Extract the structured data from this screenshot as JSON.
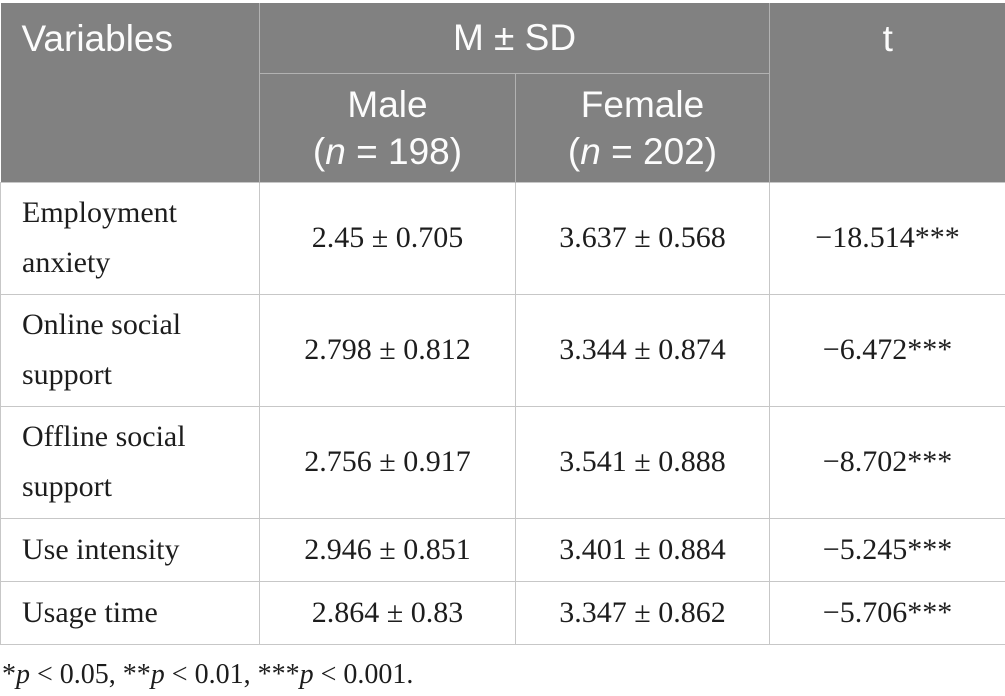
{
  "colors": {
    "header_background": "#818181",
    "header_text": "#fcfcfc",
    "body_text": "#1d1d1d",
    "grid_line": "#c7c7c7"
  },
  "table": {
    "header": {
      "variables_label": "Variables",
      "msd_label": "M ± SD",
      "t_label": "t",
      "male": {
        "group": "Male",
        "n_parts": [
          {
            "text": "("
          },
          {
            "text": "n",
            "italic": true
          },
          {
            "text": " = 198)"
          }
        ]
      },
      "female": {
        "group": "Female",
        "n_parts": [
          {
            "text": "("
          },
          {
            "text": "n",
            "italic": true
          },
          {
            "text": " = 202)"
          }
        ]
      }
    },
    "rows": [
      {
        "variable": "Employment anxiety",
        "male_msd": "2.45 ± 0.705",
        "female_msd": "3.637 ± 0.568",
        "t": "−18.514***"
      },
      {
        "variable": "Online social support",
        "male_msd": "2.798 ± 0.812",
        "female_msd": "3.344 ± 0.874",
        "t": "−6.472***"
      },
      {
        "variable": "Offline social support",
        "male_msd": "2.756 ± 0.917",
        "female_msd": "3.541 ± 0.888",
        "t": "−8.702***"
      },
      {
        "variable": "Use intensity",
        "male_msd": "2.946 ± 0.851",
        "female_msd": "3.401 ± 0.884",
        "t": "−5.245***"
      },
      {
        "variable": "Usage time",
        "male_msd": "2.864 ± 0.83",
        "female_msd": "3.347 ± 0.862",
        "t": "−5.706***"
      }
    ]
  },
  "footnote": {
    "parts": [
      {
        "text": "*"
      },
      {
        "text": "p",
        "italic": true
      },
      {
        "text": " < 0.05, **"
      },
      {
        "text": "p",
        "italic": true
      },
      {
        "text": " < 0.01, ***"
      },
      {
        "text": "p",
        "italic": true
      },
      {
        "text": " < 0.001."
      }
    ]
  }
}
